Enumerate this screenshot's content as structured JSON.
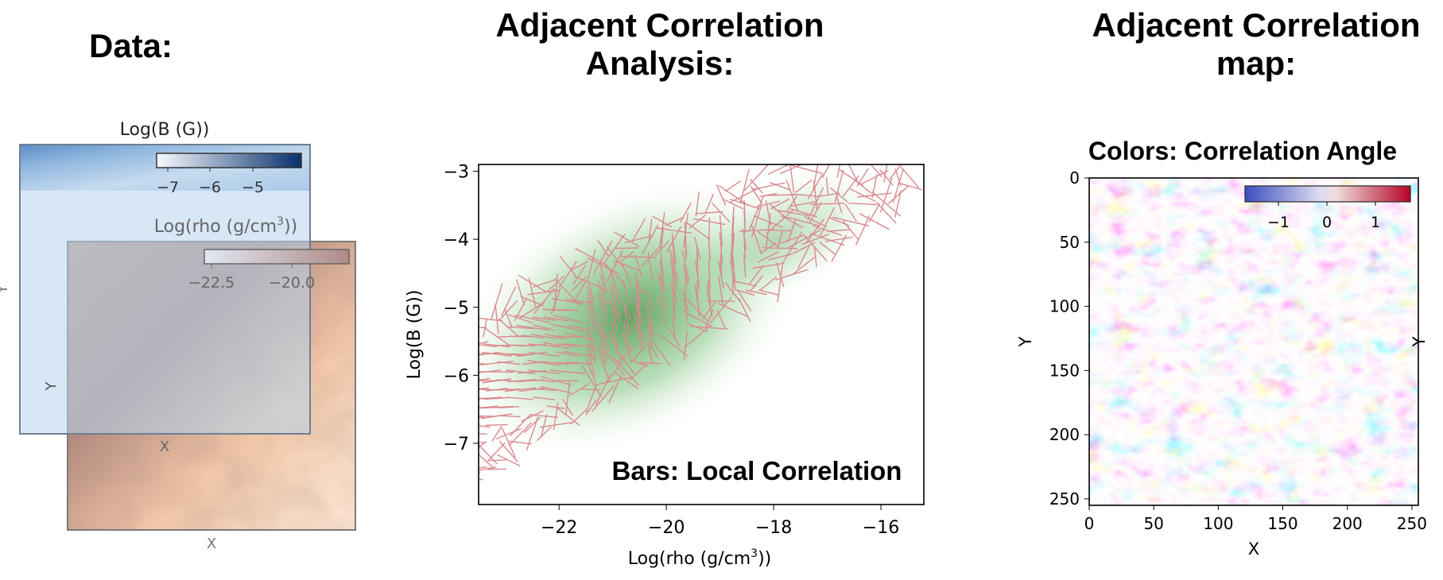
{
  "headings": {
    "data": "Data:",
    "analysis": [
      "Adjacent Correlation",
      "Analysis:"
    ],
    "map": [
      "Adjacent Correlation",
      "map:"
    ]
  },
  "panel_left": {
    "b_map": {
      "title": "Log(B (G))",
      "colorbar_ticks": [
        "−7",
        "−6",
        "−5"
      ],
      "colorbar_values": [
        -7,
        -6,
        -5
      ],
      "ylabel": "Y",
      "xlabel": "X",
      "colormap": "Blues"
    },
    "rho_map": {
      "title_main": "Log(rho (g/cm",
      "title_sup": "3",
      "title_end": "))",
      "colorbar_ticks": [
        "−22.5",
        "−20.0"
      ],
      "colorbar_values": [
        -22.5,
        -20.0
      ],
      "ylabel": "Y",
      "xlabel": "X",
      "colormap": "Oranges"
    }
  },
  "panel_middle": {
    "annotation": "Bars: Local Correlation",
    "xlabel_main": "Log(rho (g/cm",
    "xlabel_sup": "3",
    "xlabel_end": "))",
    "ylabel": "Log(B (G))",
    "xticks": [
      "−22",
      "−20",
      "−18",
      "−16"
    ],
    "yticks": [
      "−3",
      "−4",
      "−5",
      "−6",
      "−7"
    ]
  },
  "panel_right": {
    "title": "Colors: Correlation Angle",
    "xlabel": "X",
    "ylabel": "Y",
    "xticks": [
      "0",
      "50",
      "100",
      "150",
      "200",
      "250"
    ],
    "yticks": [
      "0",
      "50",
      "100",
      "150",
      "200",
      "250"
    ],
    "colorbar_ticks": [
      "−1",
      "0",
      "1"
    ],
    "colormap": "coolwarm"
  },
  "chart_data": {
    "type": "scatter",
    "title": "",
    "xlabel": "Log(rho (g/cm3))",
    "ylabel": "Log(B (G))",
    "xlim": [
      -23.5,
      -15.2
    ],
    "ylim": [
      -7.9,
      -2.9
    ],
    "xticks": [
      -22,
      -20,
      -18,
      -16
    ],
    "yticks": [
      -3,
      -4,
      -5,
      -6,
      -7
    ],
    "density_peak": [
      -21.5,
      -5.4
    ],
    "bar_color": "#d98a8f",
    "density_color": "#4e9a4e",
    "grid": false
  },
  "colors": {
    "b_dark": "#4f82bf",
    "b_light": "#cfe0f1",
    "rho_dark": "#a86f58",
    "rho_light": "#f7d7bf",
    "coolwarm_blue": "#3b4cc0",
    "coolwarm_red": "#b40426"
  }
}
